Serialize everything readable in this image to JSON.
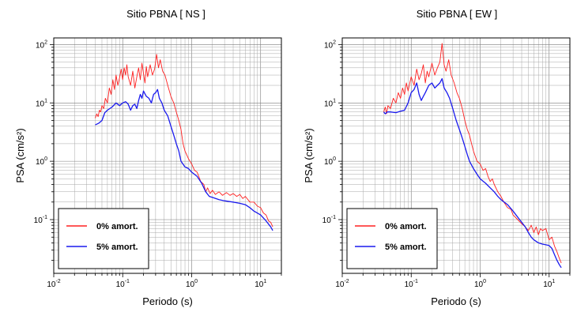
{
  "chart_data": [
    {
      "type": "line",
      "title": "Sitio PBNA [ NS ]",
      "xlabel": "Periodo (s)",
      "ylabel": "PSA (cm/s²)",
      "xscale": "log",
      "yscale": "log",
      "xlim": [
        0.01,
        20
      ],
      "ylim": [
        0.012,
        130
      ],
      "x_ticks": [
        {
          "base": "10",
          "exp": "-2"
        },
        {
          "base": "10",
          "exp": "-1"
        },
        {
          "base": "10",
          "exp": "0"
        },
        {
          "base": "10",
          "exp": "1"
        }
      ],
      "y_ticks": [
        {
          "base": "10",
          "exp": "-1"
        },
        {
          "base": "10",
          "exp": "0"
        },
        {
          "base": "10",
          "exp": "1"
        },
        {
          "base": "10",
          "exp": "2"
        }
      ],
      "grid": true,
      "legend_position": "bottom-left",
      "series": [
        {
          "name": "0% amort.",
          "color": "#ff2020",
          "points": [
            [
              0.04,
              5.5
            ],
            [
              0.042,
              6.5
            ],
            [
              0.044,
              5.8
            ],
            [
              0.046,
              7.5
            ],
            [
              0.048,
              7
            ],
            [
              0.05,
              9
            ],
            [
              0.053,
              8
            ],
            [
              0.056,
              12
            ],
            [
              0.06,
              10
            ],
            [
              0.064,
              18
            ],
            [
              0.068,
              14
            ],
            [
              0.072,
              25
            ],
            [
              0.076,
              17
            ],
            [
              0.08,
              30
            ],
            [
              0.085,
              20
            ],
            [
              0.09,
              27
            ],
            [
              0.095,
              38
            ],
            [
              0.1,
              25
            ],
            [
              0.105,
              40
            ],
            [
              0.11,
              30
            ],
            [
              0.115,
              45
            ],
            [
              0.12,
              28
            ],
            [
              0.13,
              20
            ],
            [
              0.14,
              35
            ],
            [
              0.15,
              18
            ],
            [
              0.16,
              28
            ],
            [
              0.17,
              40
            ],
            [
              0.18,
              25
            ],
            [
              0.19,
              48
            ],
            [
              0.2,
              32
            ],
            [
              0.21,
              22
            ],
            [
              0.22,
              42
            ],
            [
              0.23,
              28
            ],
            [
              0.25,
              45
            ],
            [
              0.27,
              30
            ],
            [
              0.29,
              38
            ],
            [
              0.31,
              68
            ],
            [
              0.33,
              40
            ],
            [
              0.35,
              55
            ],
            [
              0.38,
              35
            ],
            [
              0.41,
              30
            ],
            [
              0.45,
              20
            ],
            [
              0.5,
              13
            ],
            [
              0.55,
              10
            ],
            [
              0.6,
              7
            ],
            [
              0.65,
              5
            ],
            [
              0.7,
              3.5
            ],
            [
              0.75,
              2
            ],
            [
              0.8,
              1.5
            ],
            [
              0.9,
              1.1
            ],
            [
              1.0,
              0.9
            ],
            [
              1.1,
              0.7
            ],
            [
              1.2,
              0.65
            ],
            [
              1.35,
              0.45
            ],
            [
              1.5,
              0.4
            ],
            [
              1.6,
              0.3
            ],
            [
              1.7,
              0.35
            ],
            [
              1.85,
              0.28
            ],
            [
              2.0,
              0.32
            ],
            [
              2.2,
              0.27
            ],
            [
              2.5,
              0.3
            ],
            [
              2.8,
              0.26
            ],
            [
              3.2,
              0.29
            ],
            [
              3.6,
              0.26
            ],
            [
              4.0,
              0.28
            ],
            [
              4.5,
              0.25
            ],
            [
              5.0,
              0.27
            ],
            [
              5.5,
              0.23
            ],
            [
              6.0,
              0.25
            ],
            [
              7.0,
              0.2
            ],
            [
              8.0,
              0.2
            ],
            [
              9.0,
              0.17
            ],
            [
              10.0,
              0.16
            ],
            [
              11.0,
              0.13
            ],
            [
              12.0,
              0.12
            ],
            [
              13.0,
              0.095
            ],
            [
              14.0,
              0.09
            ],
            [
              15.0,
              0.075
            ]
          ]
        },
        {
          "name": "5% amort.",
          "color": "#1a1aee",
          "points": [
            [
              0.04,
              4.2
            ],
            [
              0.045,
              4.5
            ],
            [
              0.05,
              5
            ],
            [
              0.055,
              6.8
            ],
            [
              0.06,
              7.5
            ],
            [
              0.07,
              8.5
            ],
            [
              0.08,
              10
            ],
            [
              0.09,
              9
            ],
            [
              0.1,
              10
            ],
            [
              0.11,
              10.5
            ],
            [
              0.12,
              9.5
            ],
            [
              0.13,
              7.5
            ],
            [
              0.14,
              9
            ],
            [
              0.15,
              9.5
            ],
            [
              0.16,
              8
            ],
            [
              0.17,
              11
            ],
            [
              0.18,
              14
            ],
            [
              0.19,
              12
            ],
            [
              0.2,
              16
            ],
            [
              0.22,
              13
            ],
            [
              0.24,
              12
            ],
            [
              0.26,
              10
            ],
            [
              0.28,
              14
            ],
            [
              0.3,
              15
            ],
            [
              0.32,
              17
            ],
            [
              0.34,
              12
            ],
            [
              0.37,
              10
            ],
            [
              0.4,
              7.5
            ],
            [
              0.45,
              6
            ],
            [
              0.5,
              4
            ],
            [
              0.55,
              2.8
            ],
            [
              0.6,
              2
            ],
            [
              0.65,
              1.5
            ],
            [
              0.7,
              1.0
            ],
            [
              0.8,
              0.8
            ],
            [
              0.9,
              0.75
            ],
            [
              1.0,
              0.65
            ],
            [
              1.2,
              0.55
            ],
            [
              1.4,
              0.42
            ],
            [
              1.6,
              0.3
            ],
            [
              1.8,
              0.25
            ],
            [
              2.0,
              0.24
            ],
            [
              2.5,
              0.22
            ],
            [
              3.0,
              0.21
            ],
            [
              4.0,
              0.2
            ],
            [
              5.0,
              0.19
            ],
            [
              6.0,
              0.18
            ],
            [
              7.0,
              0.16
            ],
            [
              8.0,
              0.14
            ],
            [
              10.0,
              0.12
            ],
            [
              12.0,
              0.095
            ],
            [
              14.0,
              0.075
            ],
            [
              15.0,
              0.065
            ]
          ]
        }
      ]
    },
    {
      "type": "line",
      "title": "Sitio PBNA [ EW ]",
      "xlabel": "Periodo (s)",
      "ylabel": "PSA (cm/s²)",
      "xscale": "log",
      "yscale": "log",
      "xlim": [
        0.01,
        20
      ],
      "ylim": [
        0.012,
        130
      ],
      "x_ticks": [
        {
          "base": "10",
          "exp": "-2"
        },
        {
          "base": "10",
          "exp": "-1"
        },
        {
          "base": "10",
          "exp": "0"
        },
        {
          "base": "10",
          "exp": "1"
        }
      ],
      "y_ticks": [
        {
          "base": "10",
          "exp": "-1"
        },
        {
          "base": "10",
          "exp": "0"
        },
        {
          "base": "10",
          "exp": "1"
        },
        {
          "base": "10",
          "exp": "2"
        }
      ],
      "grid": true,
      "legend_position": "bottom-left",
      "series": [
        {
          "name": "0% amort.",
          "color": "#ff2020",
          "points": [
            [
              0.04,
              7
            ],
            [
              0.042,
              8.5
            ],
            [
              0.044,
              6.5
            ],
            [
              0.046,
              9
            ],
            [
              0.05,
              8
            ],
            [
              0.055,
              12
            ],
            [
              0.06,
              10
            ],
            [
              0.065,
              15
            ],
            [
              0.07,
              12
            ],
            [
              0.075,
              18
            ],
            [
              0.08,
              14
            ],
            [
              0.085,
              22
            ],
            [
              0.09,
              16
            ],
            [
              0.1,
              28
            ],
            [
              0.11,
              20
            ],
            [
              0.12,
              38
            ],
            [
              0.13,
              25
            ],
            [
              0.14,
              32
            ],
            [
              0.15,
              45
            ],
            [
              0.16,
              22
            ],
            [
              0.17,
              35
            ],
            [
              0.18,
              28
            ],
            [
              0.2,
              48
            ],
            [
              0.22,
              30
            ],
            [
              0.24,
              40
            ],
            [
              0.26,
              50
            ],
            [
              0.28,
              105
            ],
            [
              0.3,
              45
            ],
            [
              0.32,
              35
            ],
            [
              0.35,
              55
            ],
            [
              0.38,
              30
            ],
            [
              0.42,
              22
            ],
            [
              0.46,
              15
            ],
            [
              0.5,
              12
            ],
            [
              0.55,
              8
            ],
            [
              0.6,
              5
            ],
            [
              0.65,
              3.5
            ],
            [
              0.7,
              2.8
            ],
            [
              0.75,
              2
            ],
            [
              0.8,
              1.5
            ],
            [
              0.9,
              1.0
            ],
            [
              1.0,
              0.9
            ],
            [
              1.1,
              0.7
            ],
            [
              1.2,
              0.75
            ],
            [
              1.3,
              0.55
            ],
            [
              1.4,
              0.45
            ],
            [
              1.5,
              0.5
            ],
            [
              1.6,
              0.4
            ],
            [
              1.8,
              0.3
            ],
            [
              2.0,
              0.25
            ],
            [
              2.2,
              0.2
            ],
            [
              2.5,
              0.16
            ],
            [
              2.8,
              0.15
            ],
            [
              3.0,
              0.12
            ],
            [
              3.5,
              0.1
            ],
            [
              4.0,
              0.085
            ],
            [
              4.5,
              0.075
            ],
            [
              5.0,
              0.065
            ],
            [
              5.5,
              0.08
            ],
            [
              6.0,
              0.06
            ],
            [
              6.5,
              0.075
            ],
            [
              7.0,
              0.055
            ],
            [
              7.5,
              0.07
            ],
            [
              8.0,
              0.065
            ],
            [
              9.0,
              0.07
            ],
            [
              10.0,
              0.045
            ],
            [
              11.0,
              0.05
            ],
            [
              12.0,
              0.035
            ],
            [
              13.0,
              0.028
            ],
            [
              14.0,
              0.022
            ],
            [
              15.0,
              0.018
            ]
          ]
        },
        {
          "name": "5% amort.",
          "color": "#1a1aee",
          "points": [
            [
              0.04,
              7
            ],
            [
              0.042,
              6.5
            ],
            [
              0.045,
              7
            ],
            [
              0.05,
              7
            ],
            [
              0.06,
              6.8
            ],
            [
              0.07,
              7.2
            ],
            [
              0.08,
              7.5
            ],
            [
              0.09,
              10
            ],
            [
              0.1,
              15
            ],
            [
              0.11,
              17
            ],
            [
              0.12,
              22
            ],
            [
              0.13,
              14
            ],
            [
              0.14,
              11
            ],
            [
              0.15,
              13
            ],
            [
              0.16,
              15
            ],
            [
              0.18,
              20
            ],
            [
              0.2,
              22
            ],
            [
              0.22,
              18
            ],
            [
              0.24,
              20
            ],
            [
              0.26,
              22
            ],
            [
              0.28,
              26
            ],
            [
              0.3,
              18
            ],
            [
              0.33,
              15
            ],
            [
              0.36,
              12
            ],
            [
              0.4,
              8
            ],
            [
              0.45,
              5
            ],
            [
              0.5,
              3.5
            ],
            [
              0.55,
              2.5
            ],
            [
              0.6,
              1.8
            ],
            [
              0.65,
              1.3
            ],
            [
              0.7,
              1.0
            ],
            [
              0.8,
              0.75
            ],
            [
              0.9,
              0.6
            ],
            [
              1.0,
              0.5
            ],
            [
              1.2,
              0.42
            ],
            [
              1.4,
              0.35
            ],
            [
              1.6,
              0.3
            ],
            [
              1.8,
              0.25
            ],
            [
              2.0,
              0.22
            ],
            [
              2.5,
              0.18
            ],
            [
              3.0,
              0.14
            ],
            [
              3.5,
              0.11
            ],
            [
              4.0,
              0.09
            ],
            [
              4.5,
              0.075
            ],
            [
              5.0,
              0.06
            ],
            [
              5.5,
              0.05
            ],
            [
              6.0,
              0.045
            ],
            [
              7.0,
              0.04
            ],
            [
              8.0,
              0.038
            ],
            [
              9.0,
              0.037
            ],
            [
              10.0,
              0.036
            ],
            [
              11.0,
              0.032
            ],
            [
              12.0,
              0.025
            ],
            [
              13.0,
              0.02
            ],
            [
              14.0,
              0.017
            ],
            [
              15.0,
              0.015
            ]
          ]
        }
      ]
    }
  ]
}
